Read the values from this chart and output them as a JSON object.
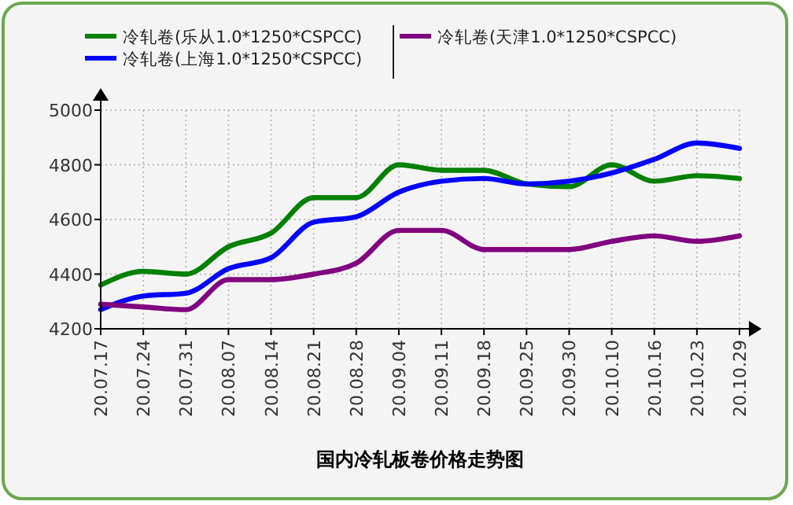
{
  "chart_data": {
    "type": "line",
    "title": "国内冷轧板卷价格走势图",
    "categories": [
      "20.07.17",
      "20.07.24",
      "20.07.31",
      "20.08.07",
      "20.08.14",
      "20.08.21",
      "20.08.28",
      "20.09.04",
      "20.09.11",
      "20.09.18",
      "20.09.25",
      "20.09.30",
      "20.10.10",
      "20.10.16",
      "20.10.23",
      "20.10.29"
    ],
    "series": [
      {
        "name": "冷轧卷(乐从1.0*1250*CSPCC)",
        "color": "#008000",
        "values": [
          4360,
          4410,
          4400,
          4500,
          4550,
          4680,
          4680,
          4800,
          4780,
          4780,
          4730,
          4720,
          4800,
          4740,
          4760,
          4750
        ]
      },
      {
        "name": "冷轧卷(上海1.0*1250*CSPCC)",
        "color": "#0000ff",
        "values": [
          4270,
          4320,
          4330,
          4420,
          4460,
          4590,
          4610,
          4700,
          4740,
          4750,
          4730,
          4740,
          4770,
          4820,
          4880,
          4860
        ]
      },
      {
        "name": "冷轧卷(天津1.0*1250*CSPCC)",
        "color": "#800080",
        "values": [
          4290,
          4280,
          4270,
          4380,
          4380,
          4400,
          4440,
          4560,
          4560,
          4490,
          4490,
          4490,
          4520,
          4540,
          4520,
          4540
        ]
      }
    ],
    "ylim": [
      4200,
      5000
    ],
    "yticks": [
      4200,
      4400,
      4600,
      4800,
      5000
    ],
    "grid": true,
    "legend": "top",
    "marker": "none",
    "line_style": "solid"
  }
}
